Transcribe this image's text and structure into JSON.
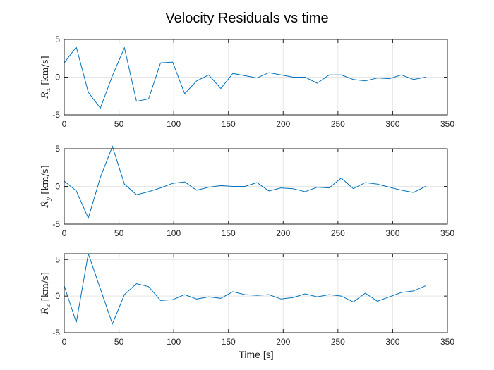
{
  "title": "Velocity Residuals vs time",
  "xlabel": "Time [s]",
  "colors": {
    "line": "#0072BD",
    "axis": "#262626",
    "grid": "#e6e6e6"
  },
  "chart_data": [
    {
      "type": "line",
      "ylabel_var": "Ṙ",
      "ylabel_sub": "x",
      "ylabel_unit": "[km/s]",
      "xlim": [
        0,
        350
      ],
      "ylim": [
        -5,
        5
      ],
      "xticks": [
        0,
        50,
        100,
        150,
        200,
        250,
        300,
        350
      ],
      "yticks": [
        -5,
        0,
        5
      ],
      "grid": true,
      "x": [
        0,
        11,
        22,
        33,
        44,
        55,
        66,
        77,
        88,
        99,
        110,
        121,
        132,
        143,
        154,
        165,
        176,
        187,
        198,
        209,
        220,
        231,
        242,
        253,
        264,
        275,
        286,
        297,
        308,
        319,
        330
      ],
      "values": [
        1.9,
        4.0,
        -2.0,
        -4.1,
        0.2,
        3.9,
        -3.2,
        -2.9,
        1.9,
        2.0,
        -2.2,
        -0.5,
        0.3,
        -1.5,
        0.5,
        0.2,
        -0.1,
        0.6,
        0.3,
        0.0,
        0.0,
        -0.8,
        0.3,
        0.3,
        -0.3,
        -0.5,
        -0.1,
        -0.2,
        0.3,
        -0.3,
        0.0
      ]
    },
    {
      "type": "line",
      "ylabel_var": "Ṙ",
      "ylabel_sub": "y",
      "ylabel_unit": "[km/s]",
      "xlim": [
        0,
        350
      ],
      "ylim": [
        -5,
        5
      ],
      "xticks": [
        0,
        50,
        100,
        150,
        200,
        250,
        300,
        350
      ],
      "yticks": [
        -5,
        0,
        5
      ],
      "grid": true,
      "x": [
        0,
        11,
        22,
        33,
        44,
        55,
        66,
        77,
        88,
        99,
        110,
        121,
        132,
        143,
        154,
        165,
        176,
        187,
        198,
        209,
        220,
        231,
        242,
        253,
        264,
        275,
        286,
        297,
        308,
        319,
        330
      ],
      "values": [
        0.7,
        -0.6,
        -4.2,
        1.2,
        5.3,
        0.3,
        -1.1,
        -0.7,
        -0.2,
        0.4,
        0.6,
        -0.5,
        -0.1,
        0.1,
        0.0,
        0.0,
        0.5,
        -0.6,
        -0.2,
        -0.3,
        -0.7,
        -0.1,
        -0.2,
        1.1,
        -0.3,
        0.5,
        0.3,
        -0.1,
        -0.5,
        -0.8,
        0.0
      ]
    },
    {
      "type": "line",
      "ylabel_var": "Ṙ",
      "ylabel_sub": "z",
      "ylabel_unit": "[km/s]",
      "xlim": [
        0,
        350
      ],
      "ylim": [
        -5,
        5.8
      ],
      "xticks": [
        0,
        50,
        100,
        150,
        200,
        250,
        300,
        350
      ],
      "yticks": [
        -5,
        0,
        5
      ],
      "grid": true,
      "x": [
        0,
        11,
        22,
        33,
        44,
        55,
        66,
        77,
        88,
        99,
        110,
        121,
        132,
        143,
        154,
        165,
        176,
        187,
        198,
        209,
        220,
        231,
        242,
        253,
        264,
        275,
        286,
        297,
        308,
        319,
        330
      ],
      "values": [
        1.4,
        -3.6,
        5.8,
        1.0,
        -3.8,
        0.2,
        1.7,
        1.3,
        -0.6,
        -0.5,
        0.2,
        -0.4,
        -0.1,
        -0.3,
        0.6,
        0.2,
        0.1,
        0.2,
        -0.4,
        -0.2,
        0.3,
        -0.1,
        0.2,
        0.0,
        -0.8,
        0.4,
        -0.7,
        -0.1,
        0.5,
        0.7,
        1.4
      ]
    }
  ]
}
